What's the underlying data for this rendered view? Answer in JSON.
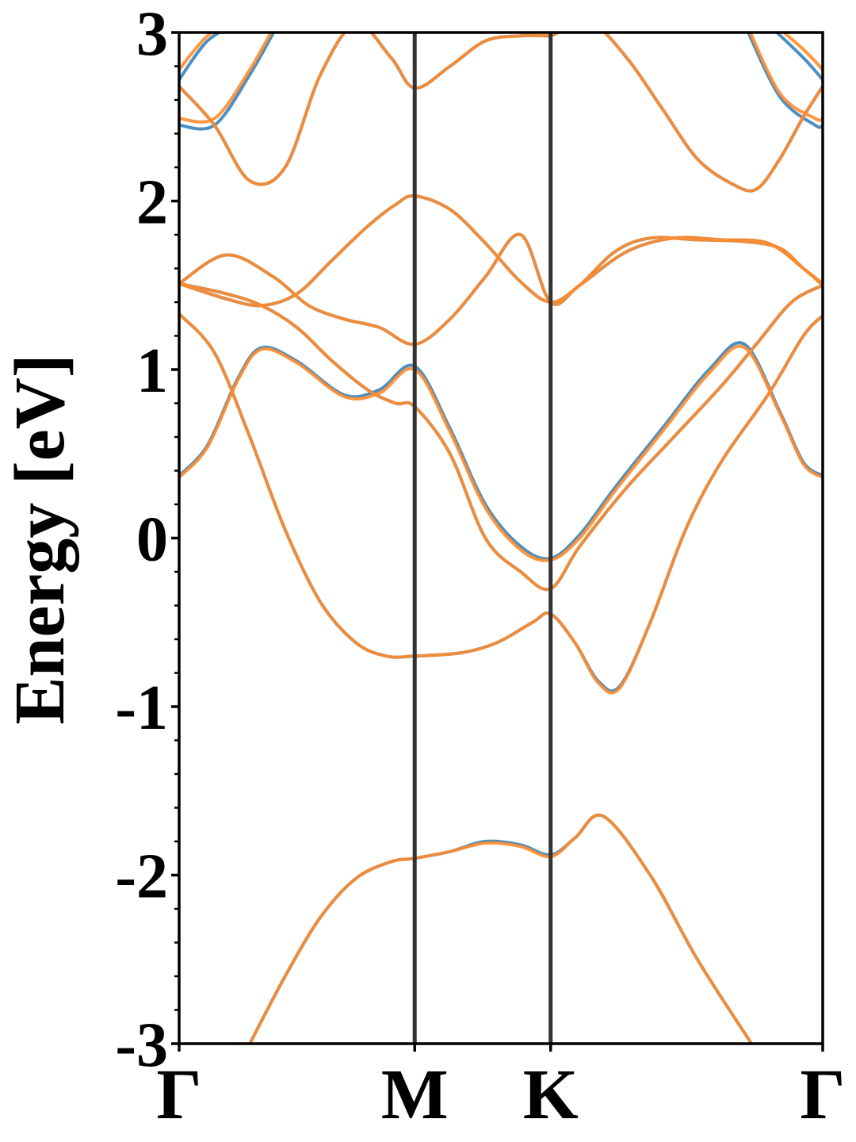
{
  "chart_data": {
    "type": "line",
    "title": "",
    "xlabel": "",
    "ylabel": "Energy [eV]",
    "ylim": [
      -3,
      3
    ],
    "xlim": [
      0,
      2.732
    ],
    "grid": false,
    "legend": "none",
    "y_ticks": [
      -3,
      -2,
      -1,
      0,
      1,
      2,
      3
    ],
    "y_tick_labels": [
      "-3",
      "-2",
      "-1",
      "0",
      "1",
      "2",
      "3"
    ],
    "x_ticks": [
      {
        "label": "Γ",
        "x": 0
      },
      {
        "label": "M",
        "x": 1.0
      },
      {
        "label": "K",
        "x": 1.577
      },
      {
        "label": "Γ",
        "x": 2.732
      }
    ],
    "vlines": [
      1.0,
      1.577
    ],
    "colors": {
      "series_a": "#4c8fc0",
      "series_b": "#ff8c2e",
      "vline": "#333333",
      "axes": "#000000"
    },
    "series": [
      {
        "color": "#4c8fc0",
        "bands": [
          {
            "x": [
              0.3,
              0.45,
              0.6,
              0.75,
              0.9,
              1.0,
              1.15,
              1.3,
              1.45,
              1.577,
              1.68,
              1.8,
              2.0,
              2.2,
              2.43
            ],
            "y": [
              -3.0,
              -2.6,
              -2.25,
              -2.02,
              -1.92,
              -1.9,
              -1.86,
              -1.8,
              -1.82,
              -1.88,
              -1.78,
              -1.65,
              -2.0,
              -2.5,
              -3.0
            ]
          },
          {
            "x": [
              0,
              0.15,
              0.3,
              0.45,
              0.6,
              0.75,
              0.88,
              1.0,
              1.2,
              1.35,
              1.5,
              1.577,
              1.68,
              1.78,
              1.87,
              2.0,
              2.15,
              2.3,
              2.5,
              2.65,
              2.732
            ],
            "y": [
              1.33,
              1.1,
              0.6,
              0.05,
              -0.38,
              -0.62,
              -0.7,
              -0.7,
              -0.68,
              -0.62,
              -0.5,
              -0.45,
              -0.62,
              -0.85,
              -0.88,
              -0.5,
              0.05,
              0.45,
              0.85,
              1.2,
              1.32
            ]
          },
          {
            "x": [
              0,
              0.12,
              0.25,
              0.35,
              0.5,
              0.7,
              0.85,
              1.0,
              1.15,
              1.3,
              1.45,
              1.577,
              1.7,
              1.85,
              2.05,
              2.25,
              2.4,
              2.55,
              2.65,
              2.732
            ],
            "y": [
              0.37,
              0.55,
              0.95,
              1.13,
              1.05,
              0.85,
              0.88,
              1.02,
              0.65,
              0.2,
              -0.05,
              -0.12,
              0.02,
              0.3,
              0.65,
              1.0,
              1.15,
              0.75,
              0.45,
              0.37
            ]
          },
          {
            "x": [
              0,
              0.2,
              0.35,
              0.5,
              0.65,
              0.8,
              0.92,
              1.0,
              1.15,
              1.3,
              1.45,
              1.577,
              1.7,
              1.9,
              2.1,
              2.3,
              2.45,
              2.6,
              2.732
            ],
            "y": [
              1.51,
              1.45,
              1.38,
              1.25,
              1.05,
              0.88,
              0.8,
              0.78,
              0.5,
              0.0,
              -0.2,
              -0.3,
              -0.05,
              0.3,
              0.6,
              0.9,
              1.15,
              1.4,
              1.5
            ]
          },
          {
            "x": [
              0,
              0.2,
              0.4,
              0.55,
              0.7,
              0.85,
              1.0,
              1.15,
              1.3,
              1.45,
              1.577,
              1.7,
              1.9,
              2.1,
              2.3,
              2.5,
              2.65,
              2.732
            ],
            "y": [
              1.51,
              1.68,
              1.55,
              1.38,
              1.3,
              1.25,
              1.15,
              1.3,
              1.55,
              1.8,
              1.4,
              1.5,
              1.7,
              1.78,
              1.77,
              1.75,
              1.6,
              1.5
            ]
          },
          {
            "x": [
              0,
              0.2,
              0.35,
              0.5,
              0.65,
              0.8,
              0.92,
              1.0,
              1.15,
              1.3,
              1.45,
              1.577,
              1.7,
              1.85,
              2.0,
              2.2,
              2.4,
              2.55,
              2.65,
              2.732
            ],
            "y": [
              1.51,
              1.42,
              1.38,
              1.45,
              1.65,
              1.85,
              1.98,
              2.03,
              1.95,
              1.75,
              1.52,
              1.4,
              1.5,
              1.7,
              1.78,
              1.77,
              1.76,
              1.72,
              1.6,
              1.51
            ]
          },
          {
            "x": [
              0,
              0.15,
              0.3,
              0.45,
              0.6,
              0.75,
              0.9,
              1.0,
              1.15,
              1.3,
              1.45,
              1.577
            ],
            "y": [
              2.68,
              2.45,
              2.12,
              2.2,
              2.75,
              3.05,
              2.85,
              2.67,
              2.8,
              2.95,
              2.98,
              2.98
            ]
          },
          {
            "x": [
              1.577,
              1.75,
              1.9,
              2.05,
              2.2,
              2.35,
              2.45,
              2.55,
              2.65,
              2.732
            ],
            "y": [
              2.98,
              3.05,
              2.85,
              2.55,
              2.25,
              2.1,
              2.07,
              2.25,
              2.5,
              2.68
            ]
          },
          {
            "x": [
              0,
              0.12,
              0.25,
              0.35,
              0.45
            ],
            "y": [
              2.72,
              2.95,
              3.05,
              3.1,
              3.1
            ]
          },
          {
            "x": [
              0,
              0.15,
              0.3,
              0.42
            ],
            "y": [
              2.45,
              2.45,
              2.75,
              3.05
            ]
          },
          {
            "x": [
              2.4,
              2.55,
              2.7,
              2.732
            ],
            "y": [
              3.05,
              2.62,
              2.45,
              2.45
            ]
          },
          {
            "x": [
              2.5,
              2.65,
              2.732
            ],
            "y": [
              3.05,
              2.85,
              2.72
            ]
          }
        ]
      },
      {
        "color": "#ff8c2e",
        "bands": [
          {
            "x": [
              0.3,
              0.45,
              0.6,
              0.75,
              0.9,
              1.0,
              1.15,
              1.3,
              1.45,
              1.577,
              1.68,
              1.8,
              2.0,
              2.2,
              2.43
            ],
            "y": [
              -3.0,
              -2.6,
              -2.25,
              -2.02,
              -1.92,
              -1.9,
              -1.86,
              -1.81,
              -1.83,
              -1.89,
              -1.78,
              -1.65,
              -2.0,
              -2.5,
              -3.0
            ]
          },
          {
            "x": [
              0,
              0.15,
              0.3,
              0.45,
              0.6,
              0.75,
              0.88,
              1.0,
              1.2,
              1.35,
              1.5,
              1.577,
              1.68,
              1.78,
              1.87,
              2.0,
              2.15,
              2.3,
              2.5,
              2.65,
              2.732
            ],
            "y": [
              1.33,
              1.1,
              0.6,
              0.05,
              -0.38,
              -0.62,
              -0.7,
              -0.7,
              -0.68,
              -0.62,
              -0.5,
              -0.45,
              -0.62,
              -0.86,
              -0.89,
              -0.5,
              0.05,
              0.45,
              0.85,
              1.2,
              1.32
            ]
          },
          {
            "x": [
              0,
              0.12,
              0.25,
              0.35,
              0.5,
              0.7,
              0.85,
              1.0,
              1.15,
              1.3,
              1.45,
              1.577,
              1.7,
              1.85,
              2.05,
              2.25,
              2.4,
              2.55,
              2.65,
              2.732
            ],
            "y": [
              0.36,
              0.54,
              0.94,
              1.12,
              1.04,
              0.84,
              0.86,
              1.0,
              0.63,
              0.18,
              -0.07,
              -0.13,
              0.0,
              0.28,
              0.63,
              0.98,
              1.13,
              0.74,
              0.44,
              0.36
            ]
          },
          {
            "x": [
              0,
              0.2,
              0.35,
              0.5,
              0.65,
              0.8,
              0.92,
              1.0,
              1.15,
              1.3,
              1.45,
              1.577,
              1.7,
              1.9,
              2.1,
              2.3,
              2.45,
              2.6,
              2.732
            ],
            "y": [
              1.51,
              1.45,
              1.38,
              1.25,
              1.05,
              0.88,
              0.8,
              0.78,
              0.5,
              0.0,
              -0.2,
              -0.3,
              -0.05,
              0.3,
              0.6,
              0.9,
              1.15,
              1.4,
              1.5
            ]
          },
          {
            "x": [
              0,
              0.2,
              0.4,
              0.55,
              0.7,
              0.85,
              1.0,
              1.15,
              1.3,
              1.45,
              1.577,
              1.7,
              1.9,
              2.1,
              2.3,
              2.5,
              2.65,
              2.732
            ],
            "y": [
              1.51,
              1.68,
              1.55,
              1.38,
              1.3,
              1.25,
              1.15,
              1.3,
              1.55,
              1.8,
              1.4,
              1.5,
              1.7,
              1.78,
              1.77,
              1.75,
              1.6,
              1.5
            ]
          },
          {
            "x": [
              0,
              0.2,
              0.35,
              0.5,
              0.65,
              0.8,
              0.92,
              1.0,
              1.15,
              1.3,
              1.45,
              1.577,
              1.7,
              1.85,
              2.0,
              2.2,
              2.4,
              2.55,
              2.65,
              2.732
            ],
            "y": [
              1.51,
              1.42,
              1.38,
              1.45,
              1.65,
              1.85,
              1.98,
              2.03,
              1.95,
              1.75,
              1.52,
              1.4,
              1.5,
              1.7,
              1.78,
              1.77,
              1.76,
              1.72,
              1.6,
              1.51
            ]
          },
          {
            "x": [
              0,
              0.15,
              0.3,
              0.45,
              0.6,
              0.75,
              0.9,
              1.0,
              1.15,
              1.3,
              1.45,
              1.577
            ],
            "y": [
              2.68,
              2.45,
              2.12,
              2.2,
              2.75,
              3.05,
              2.85,
              2.67,
              2.8,
              2.95,
              2.98,
              2.98
            ]
          },
          {
            "x": [
              1.577,
              1.75,
              1.9,
              2.05,
              2.2,
              2.35,
              2.45,
              2.55,
              2.65,
              2.732
            ],
            "y": [
              2.98,
              3.05,
              2.85,
              2.55,
              2.25,
              2.1,
              2.07,
              2.25,
              2.5,
              2.68
            ]
          },
          {
            "x": [
              0,
              0.12,
              0.25,
              0.35,
              0.45
            ],
            "y": [
              2.78,
              2.98,
              3.08,
              3.1,
              3.1
            ]
          },
          {
            "x": [
              0,
              0.15,
              0.3,
              0.42
            ],
            "y": [
              2.49,
              2.49,
              2.78,
              3.08
            ]
          },
          {
            "x": [
              2.4,
              2.55,
              2.7,
              2.732
            ],
            "y": [
              3.08,
              2.64,
              2.49,
              2.49
            ]
          },
          {
            "x": [
              2.5,
              2.65,
              2.732
            ],
            "y": [
              3.08,
              2.9,
              2.78
            ]
          }
        ]
      }
    ]
  }
}
